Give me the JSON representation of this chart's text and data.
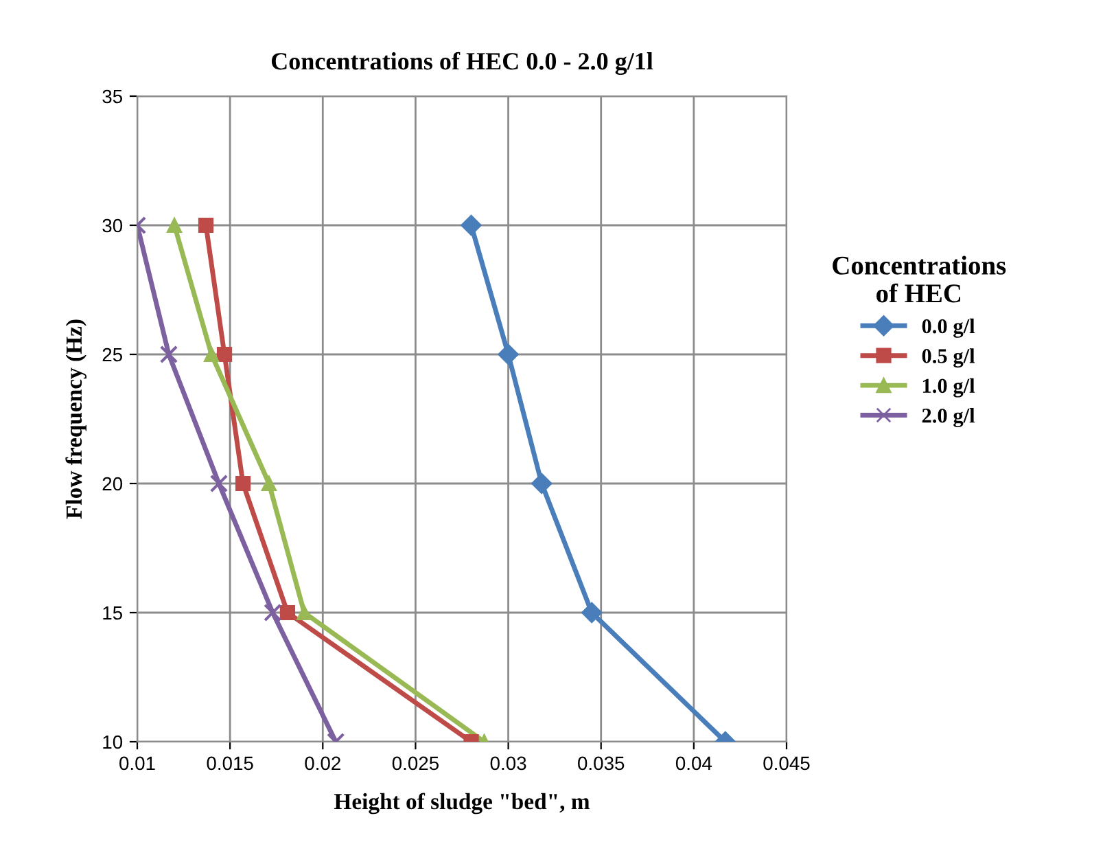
{
  "chart_data": {
    "type": "line",
    "title": "Concentrations of HEC 0.0 - 2.0 g/1l",
    "xlabel": "Height of sludge \"bed\", m",
    "ylabel": "Flow frequency (Hz)",
    "legend_title": "Concentrations\nof HEC",
    "series": [
      {
        "name": "0.0 g/l",
        "color": "#4a7ebb",
        "marker": "diamond",
        "x": [
          0.028,
          0.03,
          0.0318,
          0.0345,
          0.0417
        ],
        "values": [
          30,
          25,
          20,
          15,
          10
        ]
      },
      {
        "name": "0.5 g/l",
        "color": "#be4b48",
        "marker": "square",
        "x": [
          0.0137,
          0.0147,
          0.0157,
          0.0181,
          0.028
        ],
        "values": [
          30,
          25,
          20,
          15,
          10
        ]
      },
      {
        "name": "1.0 g/l",
        "color": "#98b954",
        "marker": "triangle",
        "x": [
          0.012,
          0.014,
          0.0171,
          0.019,
          0.0287
        ],
        "values": [
          30,
          25,
          20,
          15,
          10
        ]
      },
      {
        "name": "2.0 g/l",
        "color": "#7d60a0",
        "marker": "cross",
        "x": [
          0.01,
          0.0117,
          0.0144,
          0.0173,
          0.0207
        ],
        "values": [
          30,
          25,
          20,
          15,
          10
        ]
      }
    ],
    "xlim": [
      0.01,
      0.045
    ],
    "xticks": [
      0.01,
      0.015,
      0.02,
      0.025,
      0.03,
      0.035,
      0.04,
      0.045
    ],
    "ylim": [
      10,
      35
    ],
    "yticks": [
      10,
      15,
      20,
      25,
      30,
      35
    ],
    "grid": true,
    "legend": "right",
    "line_style": "solid"
  }
}
